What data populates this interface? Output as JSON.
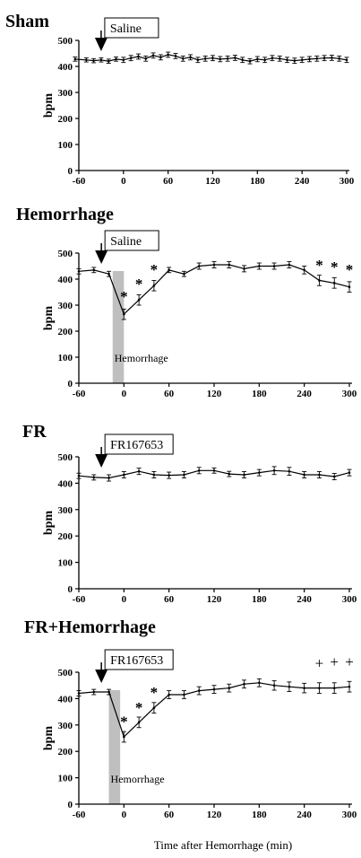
{
  "chart_data": [
    {
      "type": "line",
      "title": "Sham",
      "ylabel": "bpm",
      "xlabel": "",
      "xlim": [
        -60,
        300
      ],
      "ylim": [
        0,
        500
      ],
      "xticks": [
        -60,
        0,
        60,
        120,
        180,
        240,
        300
      ],
      "yticks": [
        0,
        100,
        200,
        300,
        400,
        500
      ],
      "injection": {
        "label": "Saline",
        "x": -30
      },
      "shaded": null,
      "series": [
        {
          "x": [
            -65,
            -50,
            -40,
            -30,
            -20,
            -10,
            0,
            10,
            20,
            30,
            40,
            50,
            60,
            70,
            80,
            90,
            100,
            110,
            120,
            130,
            140,
            150,
            160,
            170,
            180,
            190,
            200,
            210,
            220,
            230,
            240,
            250,
            260,
            270,
            280,
            290,
            300
          ],
          "y": [
            428,
            425,
            422,
            425,
            420,
            428,
            425,
            432,
            438,
            430,
            442,
            435,
            445,
            440,
            430,
            435,
            425,
            430,
            432,
            428,
            430,
            433,
            425,
            420,
            428,
            425,
            432,
            430,
            425,
            422,
            425,
            428,
            430,
            432,
            433,
            430,
            425
          ],
          "err": [
            8,
            8,
            8,
            8,
            8,
            8,
            10,
            10,
            10,
            10,
            10,
            10,
            10,
            10,
            10,
            10,
            10,
            10,
            10,
            10,
            10,
            10,
            10,
            10,
            10,
            10,
            10,
            10,
            10,
            10,
            10,
            10,
            10,
            10,
            10,
            10,
            10
          ]
        }
      ],
      "markers": []
    },
    {
      "type": "line",
      "title": "Hemorrhage",
      "ylabel": "bpm",
      "xlabel": "",
      "xlim": [
        -60,
        300
      ],
      "ylim": [
        0,
        500
      ],
      "xticks": [
        -60,
        0,
        60,
        120,
        180,
        240,
        300
      ],
      "yticks": [
        0,
        100,
        200,
        300,
        400,
        500
      ],
      "injection": {
        "label": "Saline",
        "x": -30
      },
      "shaded": {
        "from": -15,
        "to": 0,
        "label": "Hemorrhage"
      },
      "series": [
        {
          "x": [
            -60,
            -40,
            -20,
            0,
            20,
            40,
            60,
            80,
            100,
            120,
            140,
            160,
            180,
            200,
            220,
            240,
            260,
            280,
            300
          ],
          "y": [
            430,
            435,
            420,
            265,
            320,
            375,
            435,
            420,
            450,
            455,
            455,
            440,
            450,
            450,
            455,
            435,
            395,
            385,
            370
          ],
          "err": [
            10,
            10,
            10,
            20,
            20,
            20,
            10,
            10,
            12,
            12,
            12,
            12,
            12,
            12,
            12,
            15,
            20,
            20,
            20
          ]
        }
      ],
      "markers": [
        {
          "x": 0,
          "y": 335,
          "label": "*"
        },
        {
          "x": 20,
          "y": 382,
          "label": "*"
        },
        {
          "x": 40,
          "y": 438,
          "label": "*"
        },
        {
          "x": 260,
          "y": 455,
          "label": "*"
        },
        {
          "x": 280,
          "y": 448,
          "label": "*"
        },
        {
          "x": 300,
          "y": 438,
          "label": "*"
        }
      ]
    },
    {
      "type": "line",
      "title": "FR",
      "ylabel": "bpm",
      "xlabel": "",
      "xlim": [
        -60,
        300
      ],
      "ylim": [
        0,
        500
      ],
      "xticks": [
        -60,
        0,
        60,
        120,
        180,
        240,
        300
      ],
      "yticks": [
        0,
        100,
        200,
        300,
        400,
        500
      ],
      "injection": {
        "label": "FR167653",
        "x": -30
      },
      "shaded": null,
      "series": [
        {
          "x": [
            -60,
            -40,
            -20,
            0,
            20,
            40,
            60,
            80,
            100,
            120,
            140,
            160,
            180,
            200,
            220,
            240,
            260,
            280,
            300
          ],
          "y": [
            428,
            422,
            420,
            432,
            445,
            432,
            430,
            432,
            448,
            448,
            435,
            432,
            440,
            448,
            445,
            432,
            432,
            425,
            440
          ],
          "err": [
            10,
            10,
            12,
            12,
            12,
            12,
            12,
            12,
            12,
            10,
            10,
            12,
            12,
            15,
            15,
            12,
            12,
            12,
            12
          ]
        }
      ],
      "markers": []
    },
    {
      "type": "line",
      "title": "FR+Hemorrhage",
      "ylabel": "bpm",
      "xlabel": "Time after Hemorrhage (min)",
      "xlim": [
        -60,
        300
      ],
      "ylim": [
        0,
        500
      ],
      "xticks": [
        -60,
        0,
        60,
        120,
        180,
        240,
        300
      ],
      "yticks": [
        0,
        100,
        200,
        300,
        400,
        500
      ],
      "injection": {
        "label": "FR167653",
        "x": -30
      },
      "shaded": {
        "from": -20,
        "to": -5,
        "label": "Hemorrhage"
      },
      "series": [
        {
          "x": [
            -60,
            -40,
            -20,
            0,
            20,
            40,
            60,
            80,
            100,
            120,
            140,
            160,
            180,
            200,
            220,
            240,
            260,
            280,
            300
          ],
          "y": [
            420,
            425,
            425,
            255,
            310,
            365,
            415,
            415,
            430,
            435,
            440,
            455,
            460,
            450,
            445,
            440,
            440,
            440,
            445
          ],
          "err": [
            10,
            10,
            10,
            20,
            20,
            20,
            15,
            15,
            15,
            15,
            15,
            15,
            15,
            18,
            18,
            18,
            20,
            20,
            20
          ]
        }
      ],
      "markers": [
        {
          "x": 0,
          "y": 315,
          "label": "*"
        },
        {
          "x": 20,
          "y": 368,
          "label": "*"
        },
        {
          "x": 40,
          "y": 425,
          "label": "*"
        },
        {
          "x": 260,
          "y": 535,
          "label": "+"
        },
        {
          "x": 280,
          "y": 540,
          "label": "+"
        },
        {
          "x": 300,
          "y": 540,
          "label": "+"
        }
      ]
    }
  ]
}
